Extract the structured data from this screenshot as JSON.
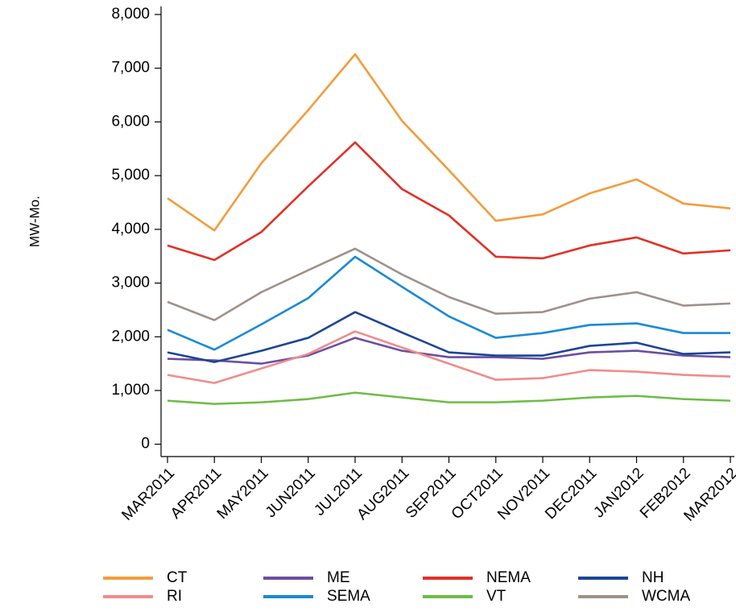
{
  "chart_data": {
    "type": "line",
    "y_label": "MW-Mo.",
    "categories": [
      "MAR2011",
      "APR2011",
      "MAY2011",
      "JUN2011",
      "JUL2011",
      "AUG2011",
      "SEP2011",
      "OCT2011",
      "NOV2011",
      "DEC2011",
      "JAN2012",
      "FEB2012",
      "MAR2012"
    ],
    "series": [
      {
        "name": "CT",
        "color": "#f39c3c",
        "values": [
          4580,
          3980,
          5230,
          6220,
          7260,
          6020,
          5100,
          4160,
          4280,
          4670,
          4930,
          4480,
          4390
        ]
      },
      {
        "name": "ME",
        "color": "#6a4fa3",
        "values": [
          1590,
          1560,
          1500,
          1650,
          1980,
          1740,
          1620,
          1620,
          1590,
          1710,
          1740,
          1650,
          1620
        ]
      },
      {
        "name": "NEMA",
        "color": "#e03127",
        "values": [
          3700,
          3430,
          3950,
          4800,
          5620,
          4750,
          4260,
          3490,
          3460,
          3700,
          3850,
          3550,
          3610
        ]
      },
      {
        "name": "NH",
        "color": "#1d4594",
        "values": [
          1710,
          1530,
          1740,
          1980,
          2460,
          2080,
          1710,
          1650,
          1650,
          1830,
          1890,
          1680,
          1710
        ]
      },
      {
        "name": "RI",
        "color": "#f08c8c",
        "values": [
          1290,
          1140,
          1410,
          1680,
          2100,
          1800,
          1500,
          1200,
          1230,
          1380,
          1350,
          1290,
          1260
        ]
      },
      {
        "name": "SEMA",
        "color": "#1a8ad4",
        "values": [
          2130,
          1760,
          2230,
          2720,
          3490,
          2930,
          2380,
          1980,
          2070,
          2220,
          2250,
          2070,
          2070
        ]
      },
      {
        "name": "VT",
        "color": "#6cbd45",
        "values": [
          810,
          750,
          780,
          840,
          960,
          870,
          780,
          780,
          810,
          870,
          900,
          840,
          810
        ]
      },
      {
        "name": "WCMA",
        "color": "#9e918a",
        "values": [
          2650,
          2310,
          2830,
          3240,
          3640,
          3160,
          2740,
          2430,
          2460,
          2710,
          2830,
          2580,
          2620
        ]
      }
    ],
    "ylim": [
      -230,
      8150
    ],
    "yticks": [
      0,
      {
        "value": 1000,
        "label": "1,000"
      },
      {
        "value": 2000,
        "label": "2,000"
      },
      {
        "value": 3000,
        "label": "3,000"
      },
      {
        "value": 4000,
        "label": "4,000"
      },
      {
        "value": 5000,
        "label": "5,000"
      },
      {
        "value": 6000,
        "label": "6,000"
      },
      {
        "value": 7000,
        "label": "7,000"
      },
      {
        "value": 8000,
        "label": "8,000"
      }
    ],
    "grid": false
  }
}
